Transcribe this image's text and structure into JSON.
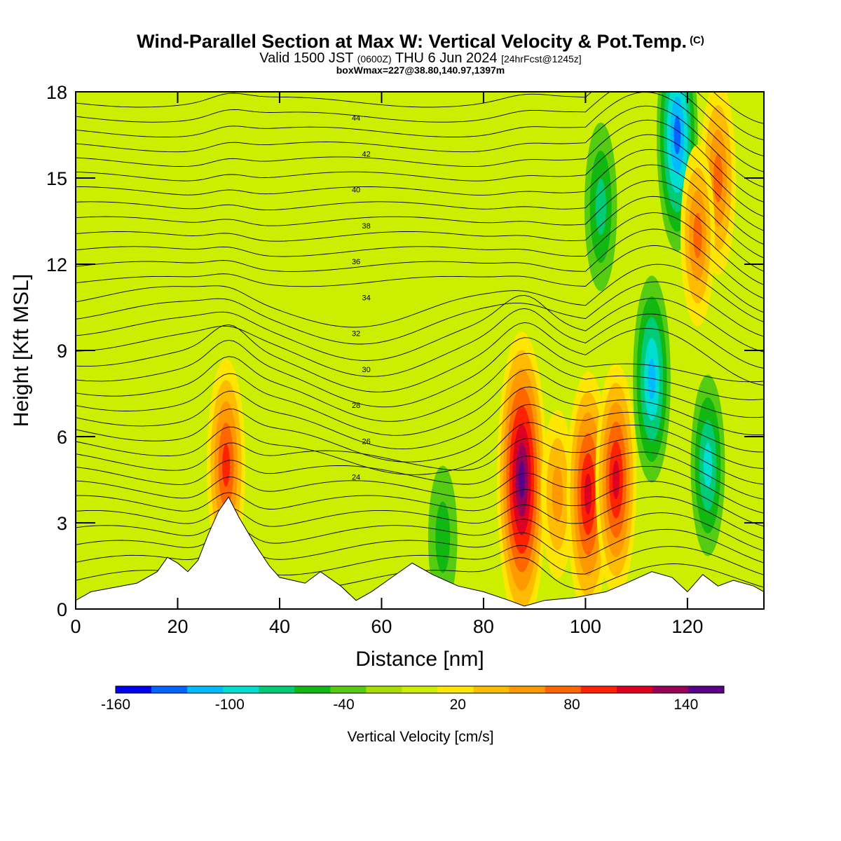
{
  "header": {
    "title": "Wind-Parallel Section at Max W: Vertical Velocity & Pot.Temp.",
    "copyright": "(C)",
    "valid_prefix": "Valid 1500 JST",
    "utc": "(0600Z)",
    "valid_date": "THU 6 Jun 2024",
    "forecast": "[24hrFcst@1245z]",
    "boxinfo": "boxWmax=227@38.80,140.97,1397m"
  },
  "chart_data": {
    "type": "heatmap",
    "xlabel": "Distance [nm]",
    "ylabel": "Height [Kft MSL]",
    "xlim": [
      0,
      135
    ],
    "ylim": [
      0,
      18
    ],
    "xticks": [
      "0",
      "20",
      "40",
      "60",
      "80",
      "100",
      "120"
    ],
    "yticks": [
      "0",
      "3",
      "6",
      "9",
      "12",
      "15",
      "18"
    ],
    "colorbar": {
      "label": "Vertical Velocity [cm/s]",
      "ticks": [
        "-160",
        "-100",
        "-40",
        "20",
        "80",
        "140"
      ],
      "levels": [
        -160,
        -140,
        -120,
        -100,
        -80,
        -60,
        -40,
        -20,
        0,
        20,
        40,
        60,
        80,
        100,
        120,
        140,
        160
      ],
      "colors": [
        "#0000ee",
        "#0066ff",
        "#00bbff",
        "#00dfcf",
        "#00cc77",
        "#11b811",
        "#55cc11",
        "#aadd00",
        "#ccee00",
        "#ffe600",
        "#ffbb00",
        "#ff9900",
        "#ff6600",
        "#ff2200",
        "#dd0022",
        "#9a0055",
        "#5a0088"
      ]
    },
    "theta_contour_labels": [
      "24",
      "26",
      "28",
      "30",
      "32",
      "34",
      "36",
      "38",
      "40",
      "42",
      "44"
    ],
    "terrain_profile": [
      [
        0,
        0.3
      ],
      [
        3,
        0.6
      ],
      [
        12,
        0.9
      ],
      [
        16,
        1.3
      ],
      [
        18,
        1.8
      ],
      [
        20,
        1.6
      ],
      [
        22,
        1.3
      ],
      [
        24,
        1.7
      ],
      [
        26,
        2.6
      ],
      [
        28,
        3.4
      ],
      [
        30,
        3.9
      ],
      [
        32,
        3.2
      ],
      [
        35,
        2.3
      ],
      [
        38,
        1.5
      ],
      [
        40,
        1.1
      ],
      [
        45,
        0.9
      ],
      [
        48,
        1.3
      ],
      [
        52,
        0.8
      ],
      [
        55,
        0.3
      ],
      [
        58,
        0.6
      ],
      [
        62,
        1.1
      ],
      [
        66,
        1.6
      ],
      [
        70,
        1.2
      ],
      [
        75,
        0.8
      ],
      [
        80,
        0.6
      ],
      [
        85,
        0.3
      ],
      [
        88,
        0.1
      ],
      [
        92,
        0.3
      ],
      [
        98,
        0.4
      ],
      [
        104,
        0.6
      ],
      [
        108,
        0.9
      ],
      [
        113,
        1.3
      ],
      [
        117,
        1.1
      ],
      [
        120,
        0.6
      ],
      [
        123,
        1.2
      ],
      [
        126,
        0.8
      ],
      [
        129,
        1.0
      ],
      [
        133,
        0.8
      ],
      [
        135,
        0.6
      ]
    ],
    "vertical_velocity_features": [
      {
        "x": 29.5,
        "z": 5.0,
        "w": 95
      },
      {
        "x": 87.5,
        "z": 4.5,
        "w": 160
      },
      {
        "x": 94.5,
        "z": 4.0,
        "w": 60
      },
      {
        "x": 100.5,
        "z": 4.0,
        "w": 120
      },
      {
        "x": 106,
        "z": 4.5,
        "w": 110
      },
      {
        "x": 118,
        "z": 16.5,
        "w": -110
      },
      {
        "x": 113,
        "z": 8.0,
        "w": -90
      },
      {
        "x": 103,
        "z": 14.0,
        "w": -60
      },
      {
        "x": 126,
        "z": 15.0,
        "w": 80
      },
      {
        "x": 122,
        "z": 13.0,
        "w": 70
      },
      {
        "x": 124,
        "z": 5.0,
        "w": -70
      },
      {
        "x": 72,
        "z": 2.5,
        "w": -40
      }
    ]
  }
}
